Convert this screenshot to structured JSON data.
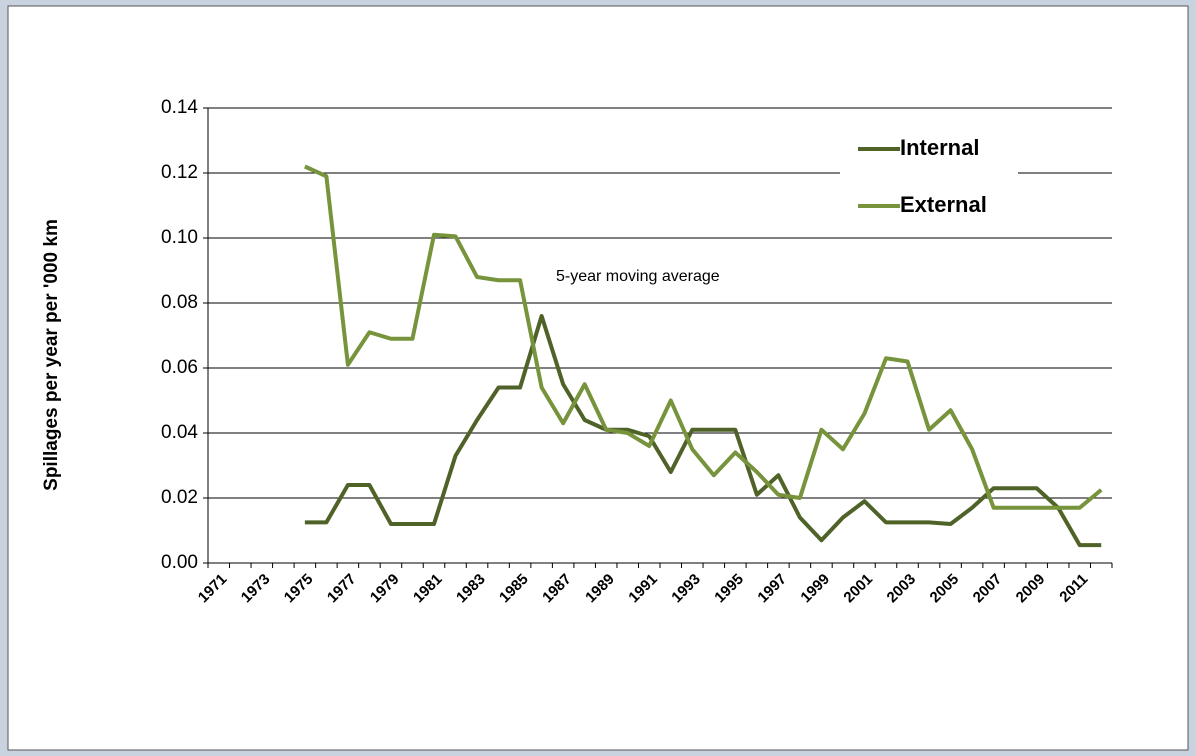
{
  "chart_data": {
    "type": "line",
    "y_label": "Spillages per year per '000 km",
    "annotation": "5-year moving average",
    "categories": [
      "1971",
      null,
      "1973",
      null,
      "1975",
      null,
      "1977",
      null,
      "1979",
      null,
      "1981",
      null,
      "1983",
      null,
      "1985",
      null,
      "1987",
      null,
      "1989",
      null,
      "1991",
      null,
      "1993",
      null,
      "1995",
      null,
      "1997",
      null,
      "1999",
      null,
      "2001",
      null,
      "2003",
      null,
      "2005",
      null,
      "2007",
      null,
      "2009",
      null,
      "2011",
      null
    ],
    "series": [
      {
        "name": "Internal",
        "color": "#4f6228",
        "values": [
          null,
          null,
          null,
          null,
          0.0125,
          0.0125,
          0.024,
          0.024,
          0.012,
          0.012,
          0.012,
          0.033,
          0.044,
          0.054,
          0.054,
          0.076,
          0.055,
          0.044,
          0.041,
          0.041,
          0.039,
          0.028,
          0.041,
          0.041,
          0.041,
          0.021,
          0.027,
          0.014,
          0.007,
          0.014,
          0.019,
          0.0125,
          0.0125,
          0.0125,
          0.012,
          0.017,
          0.023,
          0.023,
          0.023,
          0.017,
          0.0055,
          0.0055
        ]
      },
      {
        "name": "External",
        "color": "#77933c",
        "values": [
          null,
          null,
          null,
          null,
          0.122,
          0.119,
          0.061,
          0.071,
          0.069,
          0.069,
          0.101,
          0.1005,
          0.088,
          0.087,
          0.087,
          0.054,
          0.043,
          0.055,
          0.041,
          0.04,
          0.036,
          0.05,
          0.035,
          0.027,
          0.034,
          0.028,
          0.021,
          0.02,
          0.041,
          0.035,
          0.046,
          0.063,
          0.062,
          0.041,
          0.047,
          0.035,
          0.017,
          0.017,
          0.017,
          0.017,
          0.017,
          0.0225
        ]
      }
    ],
    "ylim": [
      0,
      0.14
    ],
    "yticks": [
      {
        "value": 0,
        "label": "0.00"
      },
      {
        "value": 0.02,
        "label": "0.02"
      },
      {
        "value": 0.04,
        "label": "0.04"
      },
      {
        "value": 0.06,
        "label": "0.06"
      },
      {
        "value": 0.08,
        "label": "0.08"
      },
      {
        "value": 0.1,
        "label": "0.10"
      },
      {
        "value": 0.12,
        "label": "0.12"
      },
      {
        "value": 0.14,
        "label": "0.14"
      }
    ],
    "grid": true,
    "legend": "top-right"
  }
}
